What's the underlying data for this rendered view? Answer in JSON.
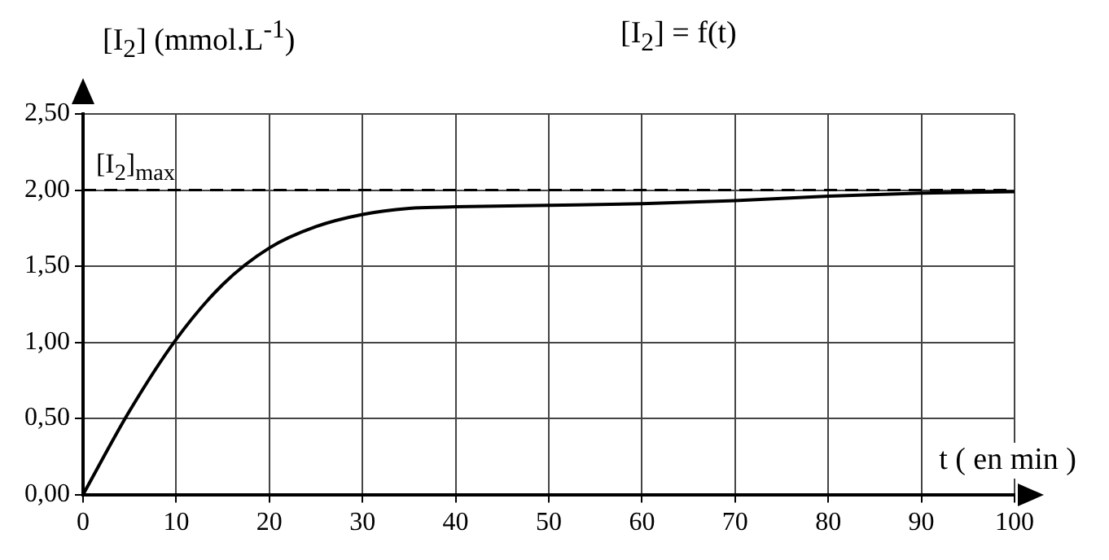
{
  "chart_data": {
    "type": "line",
    "title": "[I$_{2}$] = f(t)",
    "ylabel": "[I$_{2}$] (mmol.L$^{-1}$)",
    "xlabel": "t ( en min )",
    "x": [
      0,
      5,
      10,
      15,
      20,
      25,
      30,
      35,
      40,
      50,
      60,
      70,
      80,
      90,
      100
    ],
    "series": [
      {
        "color": "#000000",
        "values": [
          0,
          0.55,
          1.02,
          1.38,
          1.62,
          1.76,
          1.84,
          1.88,
          1.89,
          1.9,
          1.91,
          1.93,
          1.96,
          1.98,
          1.99
        ]
      }
    ],
    "xlim": [
      0,
      100
    ],
    "xticks": [
      0,
      10,
      20,
      30,
      40,
      50,
      60,
      70,
      80,
      90,
      100
    ],
    "ylim": [
      0,
      2.5
    ],
    "yticks": [
      {
        "value": 0,
        "label": "0,00"
      },
      {
        "value": 0.5,
        "label": "0,50"
      },
      {
        "value": 1,
        "label": "1,00"
      },
      {
        "value": 1.5,
        "label": "1,50"
      },
      {
        "value": 2,
        "label": "2,00"
      },
      {
        "value": 2.5,
        "label": "2,50"
      }
    ],
    "ref_lines": [
      {
        "axis": "y",
        "value": 2,
        "label": "[I$_{2}$]$_{max}$",
        "line_style": "dashed",
        "color": "#000000"
      }
    ],
    "grid": true,
    "legend": false,
    "marker": "none",
    "line_style": "solid"
  }
}
